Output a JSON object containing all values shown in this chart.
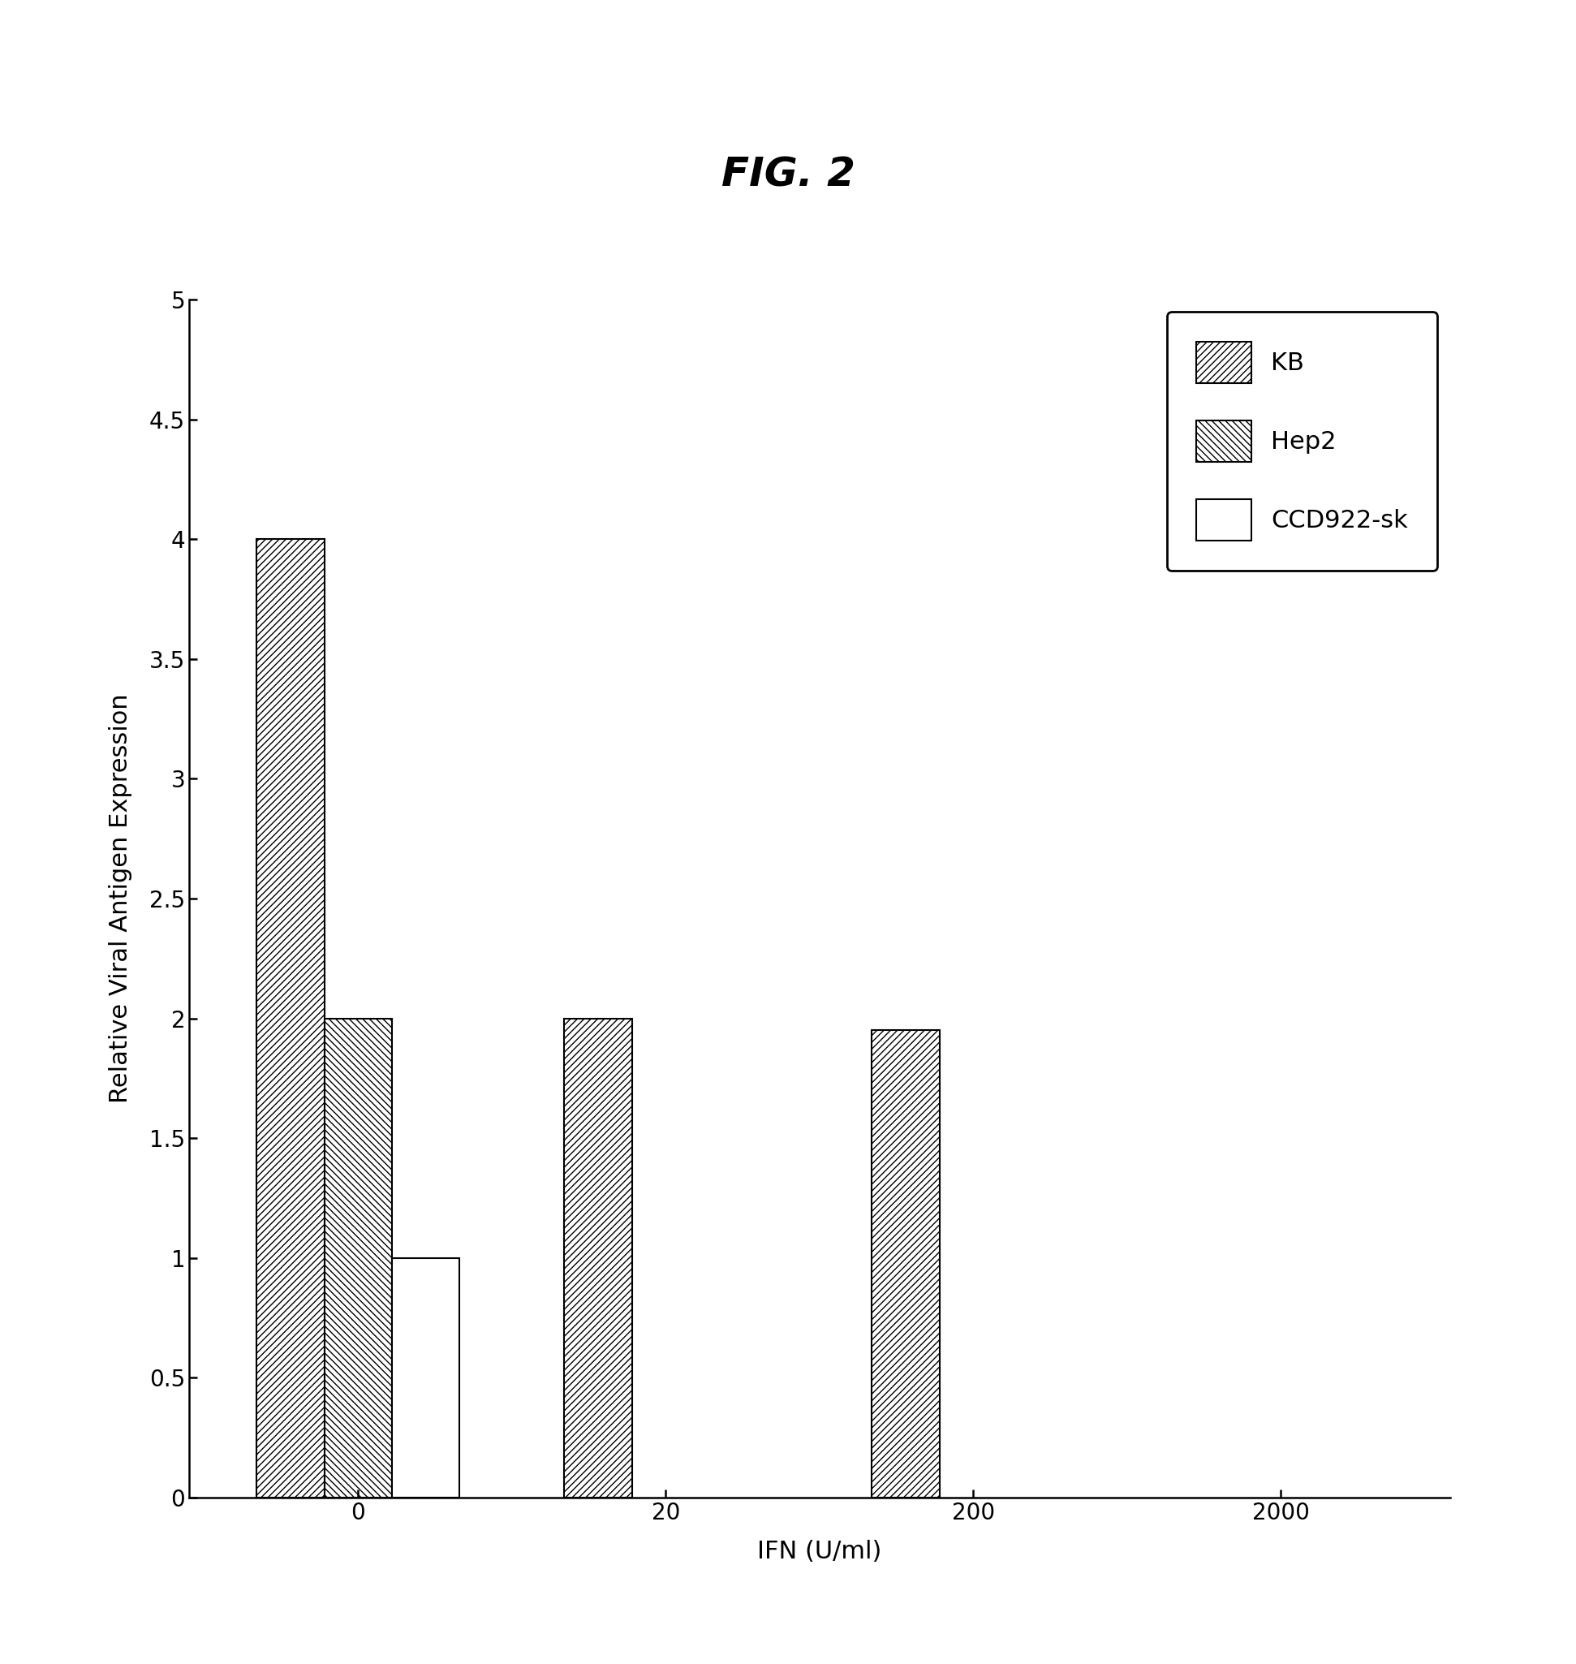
{
  "title": "FIG. 2",
  "xlabel": "IFN (U/ml)",
  "ylabel": "Relative Viral Antigen Expression",
  "ylim": [
    0,
    5
  ],
  "yticks": [
    0,
    0.5,
    1.0,
    1.5,
    2.0,
    2.5,
    3.0,
    3.5,
    4.0,
    4.5,
    5.0
  ],
  "ytick_labels": [
    "0",
    "0.5",
    "1",
    "1.5",
    "2",
    "2.5",
    "3",
    "3.5",
    "4",
    "4.5",
    "5"
  ],
  "x_positions": [
    0,
    1,
    2,
    3
  ],
  "x_labels": [
    "0",
    "20",
    "200",
    "2000"
  ],
  "bar_width": 0.22,
  "offsets": [
    -0.22,
    0.0,
    0.22
  ],
  "groups": [
    {
      "label": "KB",
      "hatch": "////",
      "facecolor": "white",
      "edgecolor": "black",
      "values": [
        4.0,
        2.0,
        1.95,
        0.0
      ]
    },
    {
      "label": "Hep2",
      "hatch": "\\\\\\\\",
      "facecolor": "white",
      "edgecolor": "black",
      "values": [
        2.0,
        0.0,
        0.0,
        0.0
      ]
    },
    {
      "label": "CCD922-sk",
      "hatch": "",
      "facecolor": "white",
      "edgecolor": "black",
      "values": [
        1.0,
        0.0,
        0.0,
        0.0
      ]
    }
  ],
  "background_color": "white",
  "title_fontsize": 36,
  "axis_label_fontsize": 22,
  "tick_fontsize": 20,
  "legend_fontsize": 22,
  "xlim": [
    -0.55,
    3.55
  ]
}
